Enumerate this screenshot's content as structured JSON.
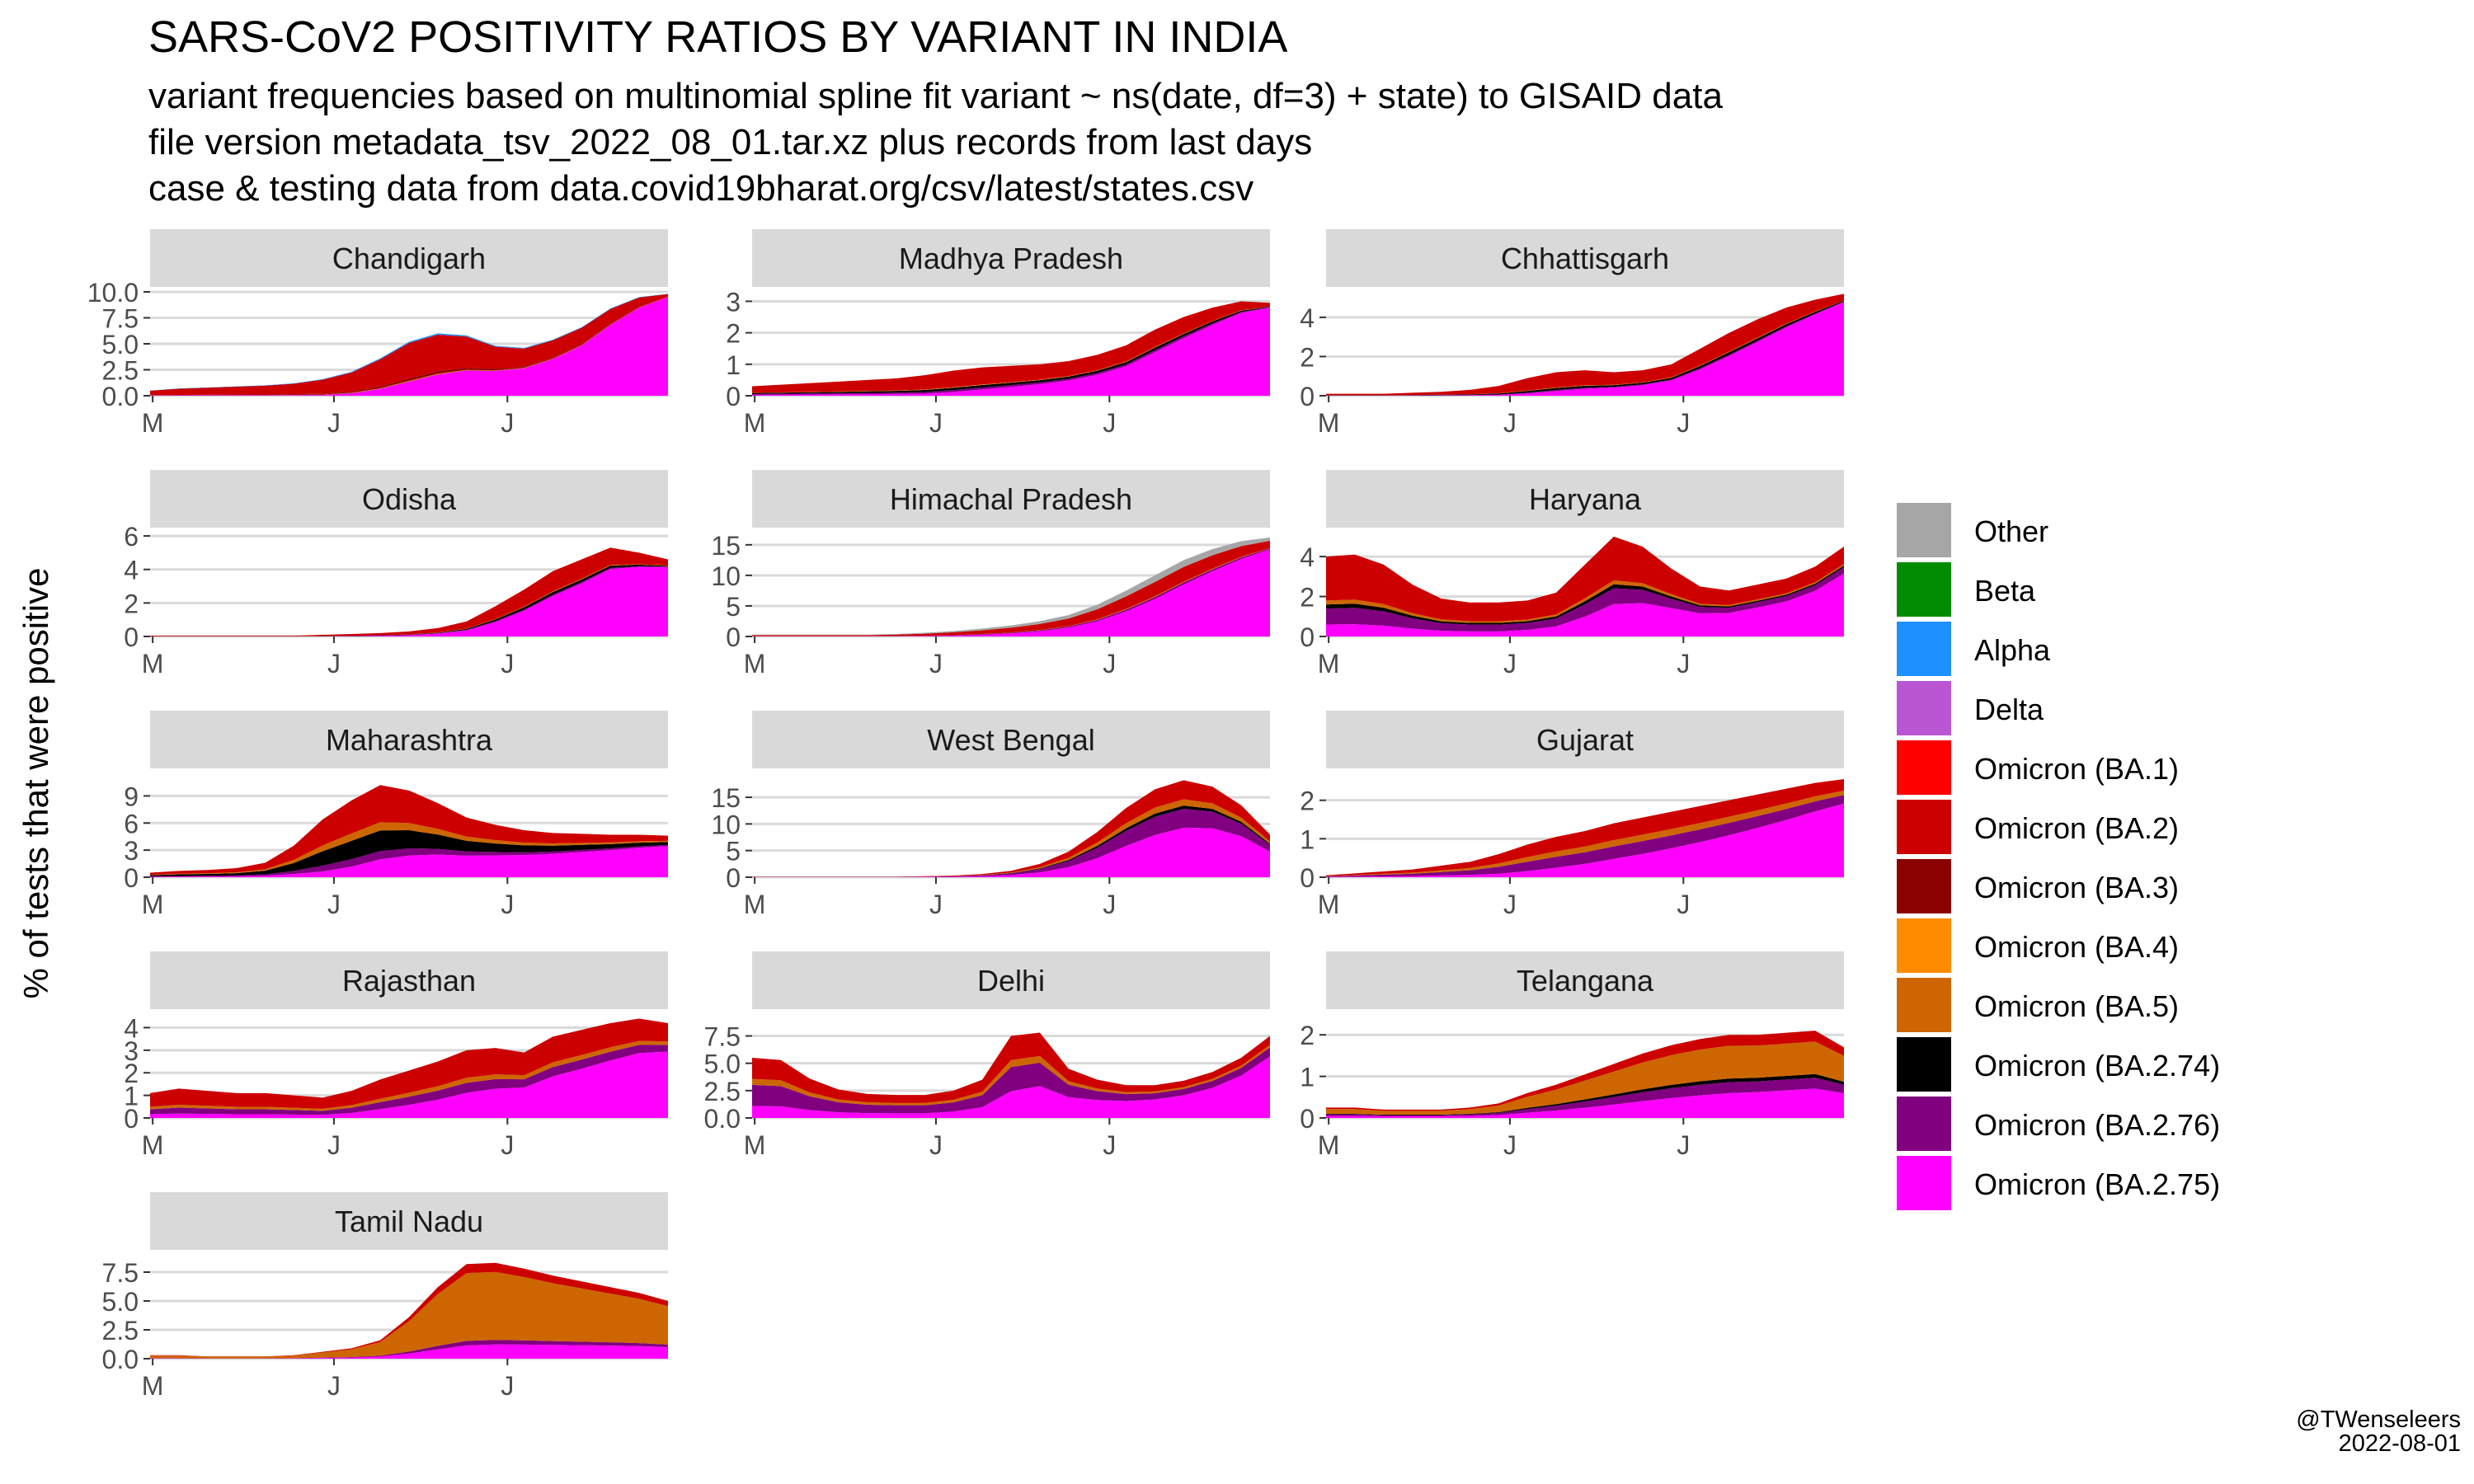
{
  "title": "SARS-CoV2 POSITIVITY RATIOS BY VARIANT IN INDIA",
  "subtitle": [
    "variant frequencies based on multinomial spline fit variant ~ ns(date, df=3) + state) to GISAID data",
    "file version metadata_tsv_2022_08_01.tar.xz plus records from last days",
    "case & testing data from data.covid19bharat.org/csv/latest/states.csv"
  ],
  "ylabel": "% of tests that were positive",
  "credit": {
    "author": "@TWenseleers",
    "date": "2022-08-01"
  },
  "chart_data": {
    "type": "area",
    "stacked": true,
    "x_ticks": [
      "M",
      "J",
      "J"
    ],
    "legend_position": "right",
    "grid": true,
    "legend": [
      {
        "name": "Other",
        "color": "#A6A6A6"
      },
      {
        "name": "Beta",
        "color": "#008B00"
      },
      {
        "name": "Alpha",
        "color": "#1E90FF"
      },
      {
        "name": "Delta",
        "color": "#BA55D3"
      },
      {
        "name": "Omicron (BA.1)",
        "color": "#FF0000"
      },
      {
        "name": "Omicron (BA.2)",
        "color": "#CD0000"
      },
      {
        "name": "Omicron (BA.3)",
        "color": "#8B0000"
      },
      {
        "name": "Omicron (BA.4)",
        "color": "#FF8C00"
      },
      {
        "name": "Omicron (BA.5)",
        "color": "#CD6600"
      },
      {
        "name": "Omicron (BA.2.74)",
        "color": "#000000"
      },
      {
        "name": "Omicron (BA.2.76)",
        "color": "#800080"
      },
      {
        "name": "Omicron (BA.2.75)",
        "color": "#FF00FF"
      }
    ],
    "panels": [
      {
        "name": "Chandigarh",
        "ylim": [
          0,
          10
        ],
        "ticks": [
          "0.0",
          "2.5",
          "5.0",
          "7.5",
          "10.0"
        ],
        "tick_values": [
          0,
          2.5,
          5,
          7.5,
          10
        ],
        "total": [
          0.5,
          0.7,
          0.8,
          0.9,
          1.0,
          1.2,
          1.6,
          2.3,
          3.6,
          5.2,
          6.0,
          5.8,
          4.8,
          4.6,
          5.4,
          6.6,
          8.4,
          9.5,
          9.8
        ],
        "shares": [
          [
            5,
            0.85
          ],
          [
            6,
            0.05
          ],
          [
            8,
            0.02
          ],
          [
            11,
            0.05
          ],
          [
            2,
            0.03
          ]
        ],
        "late_share": 0.97
      },
      {
        "name": "Madhya Pradesh",
        "ylim": [
          0,
          3.3
        ],
        "ticks": [
          "0",
          "1",
          "2",
          "3"
        ],
        "tick_values": [
          0,
          1,
          2,
          3
        ],
        "total": [
          0.3,
          0.35,
          0.4,
          0.45,
          0.5,
          0.55,
          0.65,
          0.8,
          0.9,
          0.95,
          1.0,
          1.1,
          1.3,
          1.6,
          2.1,
          2.5,
          2.8,
          3.0,
          2.95
        ],
        "shares": [
          [
            5,
            0.7
          ],
          [
            9,
            0.1
          ],
          [
            10,
            0.08
          ],
          [
            11,
            0.1
          ],
          [
            7,
            0.02
          ]
        ],
        "late_share": 0.95
      },
      {
        "name": "Chhattisgarh",
        "ylim": [
          0,
          5.3
        ],
        "ticks": [
          "0",
          "2",
          "4"
        ],
        "tick_values": [
          0,
          2,
          4
        ],
        "total": [
          0.1,
          0.1,
          0.1,
          0.15,
          0.2,
          0.3,
          0.5,
          0.9,
          1.2,
          1.3,
          1.2,
          1.3,
          1.6,
          2.4,
          3.2,
          3.9,
          4.5,
          4.9,
          5.2
        ],
        "shares": [
          [
            5,
            0.75
          ],
          [
            9,
            0.1
          ],
          [
            10,
            0.05
          ],
          [
            11,
            0.08
          ],
          [
            7,
            0.02
          ]
        ],
        "late_share": 0.92
      },
      {
        "name": "Odisha",
        "ylim": [
          0,
          6.2
        ],
        "ticks": [
          "0",
          "2",
          "4",
          "6"
        ],
        "tick_values": [
          0,
          2,
          4,
          6
        ],
        "total": [
          0.05,
          0.05,
          0.05,
          0.05,
          0.05,
          0.05,
          0.1,
          0.15,
          0.2,
          0.3,
          0.5,
          0.9,
          1.8,
          2.8,
          3.9,
          4.6,
          5.3,
          5.0,
          4.6
        ],
        "shares": [
          [
            5,
            0.75
          ],
          [
            9,
            0.1
          ],
          [
            10,
            0.05
          ],
          [
            11,
            0.08
          ],
          [
            7,
            0.02
          ]
        ],
        "late_share": 0.9
      },
      {
        "name": "Himachal Pradesh",
        "ylim": [
          0,
          17
        ],
        "ticks": [
          "0",
          "5",
          "10",
          "15"
        ],
        "tick_values": [
          0,
          5,
          10,
          15
        ],
        "total": [
          0.3,
          0.3,
          0.3,
          0.3,
          0.3,
          0.4,
          0.6,
          0.9,
          1.3,
          1.8,
          2.5,
          3.5,
          5.2,
          7.5,
          10.0,
          12.5,
          14.3,
          15.6,
          16.2
        ],
        "shares": [
          [
            5,
            0.55
          ],
          [
            0,
            0.25
          ],
          [
            10,
            0.08
          ],
          [
            11,
            0.1
          ],
          [
            7,
            0.02
          ]
        ],
        "late_share": 0.88
      },
      {
        "name": "Haryana",
        "ylim": [
          0,
          5.2
        ],
        "ticks": [
          "0",
          "2",
          "4"
        ],
        "tick_values": [
          0,
          2,
          4
        ],
        "total": [
          4.0,
          4.1,
          3.6,
          2.6,
          1.9,
          1.7,
          1.7,
          1.8,
          2.2,
          3.6,
          5.0,
          4.5,
          3.4,
          2.5,
          2.3,
          2.6,
          2.9,
          3.5,
          4.5
        ],
        "shares": [
          [
            5,
            0.55
          ],
          [
            9,
            0.05
          ],
          [
            8,
            0.05
          ],
          [
            10,
            0.2
          ],
          [
            11,
            0.15
          ]
        ],
        "late_share": 0.7
      },
      {
        "name": "Maharashtra",
        "ylim": [
          0,
          11.5
        ],
        "ticks": [
          "0",
          "3",
          "6",
          "9"
        ],
        "tick_values": [
          0,
          3,
          6,
          9
        ],
        "total": [
          0.5,
          0.7,
          0.8,
          1.0,
          1.6,
          3.5,
          6.4,
          8.5,
          10.2,
          9.6,
          8.2,
          6.6,
          5.8,
          5.2,
          4.9,
          4.8,
          4.7,
          4.7,
          4.6
        ],
        "shares": [
          [
            5,
            0.45
          ],
          [
            9,
            0.25
          ],
          [
            8,
            0.1
          ],
          [
            10,
            0.1
          ],
          [
            11,
            0.1
          ]
        ],
        "late_share": 0.75
      },
      {
        "name": "West Bengal",
        "ylim": [
          0,
          19.5
        ],
        "ticks": [
          "0",
          "5",
          "10",
          "15"
        ],
        "tick_values": [
          0,
          5,
          10,
          15
        ],
        "total": [
          0.1,
          0.1,
          0.1,
          0.1,
          0.1,
          0.1,
          0.2,
          0.3,
          0.6,
          1.2,
          2.5,
          4.8,
          8.5,
          13.0,
          16.5,
          18.2,
          17.0,
          13.5,
          8.0
        ],
        "shares": [
          [
            5,
            0.3
          ],
          [
            8,
            0.1
          ],
          [
            9,
            0.05
          ],
          [
            10,
            0.3
          ],
          [
            11,
            0.25
          ]
        ],
        "late_share": 0.6
      },
      {
        "name": "Gujarat",
        "ylim": [
          0,
          2.7
        ],
        "ticks": [
          "0",
          "1",
          "2"
        ],
        "tick_values": [
          0,
          1,
          2
        ],
        "total": [
          0.05,
          0.1,
          0.15,
          0.2,
          0.3,
          0.4,
          0.6,
          0.85,
          1.05,
          1.2,
          1.4,
          1.55,
          1.7,
          1.85,
          2.0,
          2.15,
          2.3,
          2.45,
          2.55
        ],
        "shares": [
          [
            5,
            0.4
          ],
          [
            8,
            0.15
          ],
          [
            10,
            0.3
          ],
          [
            11,
            0.15
          ]
        ],
        "late_share": 0.75
      },
      {
        "name": "Rajasthan",
        "ylim": [
          0,
          4.6
        ],
        "ticks": [
          "0",
          "1",
          "2",
          "3",
          "4"
        ],
        "tick_values": [
          0,
          1,
          2,
          3,
          4
        ],
        "total": [
          1.1,
          1.3,
          1.2,
          1.1,
          1.1,
          1.0,
          0.9,
          1.2,
          1.7,
          2.1,
          2.5,
          3.0,
          3.1,
          2.9,
          3.6,
          3.9,
          4.2,
          4.4,
          4.2
        ],
        "shares": [
          [
            5,
            0.55
          ],
          [
            8,
            0.1
          ],
          [
            10,
            0.2
          ],
          [
            11,
            0.15
          ]
        ],
        "late_share": 0.7
      },
      {
        "name": "Delhi",
        "ylim": [
          0,
          9.5
        ],
        "ticks": [
          "0.0",
          "2.5",
          "5.0",
          "7.5"
        ],
        "tick_values": [
          0,
          2.5,
          5,
          7.5
        ],
        "total": [
          5.5,
          5.3,
          3.6,
          2.6,
          2.2,
          2.1,
          2.1,
          2.5,
          3.5,
          7.5,
          7.8,
          4.5,
          3.5,
          3.0,
          3.0,
          3.4,
          4.2,
          5.5,
          7.5
        ],
        "shares": [
          [
            5,
            0.35
          ],
          [
            8,
            0.1
          ],
          [
            10,
            0.35
          ],
          [
            11,
            0.2
          ]
        ],
        "late_share": 0.75
      },
      {
        "name": "Telangana",
        "ylim": [
          0,
          2.5
        ],
        "ticks": [
          "0",
          "1",
          "2"
        ],
        "tick_values": [
          0,
          1,
          2
        ],
        "total": [
          0.25,
          0.25,
          0.2,
          0.2,
          0.2,
          0.25,
          0.35,
          0.6,
          0.8,
          1.05,
          1.3,
          1.55,
          1.75,
          1.9,
          2.0,
          2.0,
          2.05,
          2.1,
          1.7
        ],
        "shares": [
          [
            5,
            0.15
          ],
          [
            8,
            0.45
          ],
          [
            9,
            0.05
          ],
          [
            10,
            0.15
          ],
          [
            11,
            0.2
          ]
        ],
        "late_share": 0.35
      },
      {
        "name": "Tamil Nadu",
        "ylim": [
          0,
          9
        ],
        "ticks": [
          "0.0",
          "2.5",
          "5.0",
          "7.5"
        ],
        "tick_values": [
          0,
          2.5,
          5,
          7.5
        ],
        "total": [
          0.3,
          0.3,
          0.2,
          0.2,
          0.2,
          0.3,
          0.6,
          0.9,
          1.6,
          3.6,
          6.2,
          8.2,
          8.3,
          7.8,
          7.2,
          6.7,
          6.2,
          5.7,
          5.0
        ],
        "shares": [
          [
            5,
            0.1
          ],
          [
            8,
            0.75
          ],
          [
            10,
            0.05
          ],
          [
            11,
            0.1
          ]
        ],
        "late_share": 0.2
      }
    ]
  }
}
